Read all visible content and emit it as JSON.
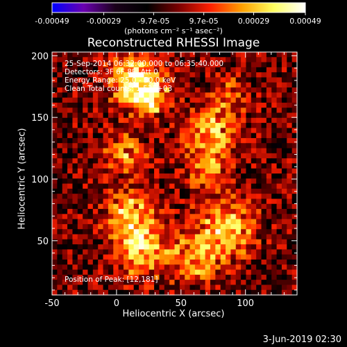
{
  "chart_data": {
    "type": "heatmap",
    "title": "Reconstructed RHESSI Image",
    "xlabel": "Heliocentric X (arcsec)",
    "ylabel": "Heliocentric Y (arcsec)",
    "xlim": [
      -50,
      140
    ],
    "ylim": [
      6,
      203
    ],
    "xticks": [
      -50,
      0,
      50,
      100
    ],
    "yticks": [
      50,
      100,
      150,
      200
    ],
    "colorbar": {
      "range": [
        -0.00049,
        0.00049
      ],
      "ticks": [
        -0.00049,
        -0.00029,
        -9.7e-05,
        9.7e-05,
        0.00029,
        0.00049
      ],
      "tick_labels": [
        "-0.00049",
        "-0.00029",
        "-9.7e-05",
        "9.7e-05",
        "0.00029",
        "0.00049"
      ],
      "colormap": [
        "#0000ff",
        "#6a00b0",
        "#1a001a",
        "#000000",
        "#7a0000",
        "#ff2000",
        "#ffa000",
        "#ffff60",
        "#ffffff"
      ]
    },
    "annotations": [
      "25-Sep-2014 06:32:00.000 to 06:35:40.000",
      "Detectors: 3F 6F 8F, Att 0",
      "Energy Range: 25.0 - 50.0 keV",
      "Clean    Total counts: 1.53E+03"
    ],
    "peak_label": "Position of Peak:",
    "peak_value": "[12,181]",
    "hotspots": [
      {
        "x": 15,
        "y": 180,
        "intensity": 1.0,
        "sigma": 14
      },
      {
        "x": 25,
        "y": 165,
        "intensity": 0.7,
        "sigma": 10
      },
      {
        "x": 5,
        "y": 120,
        "intensity": 0.55,
        "sigma": 12
      },
      {
        "x": 10,
        "y": 70,
        "intensity": 0.75,
        "sigma": 14
      },
      {
        "x": 20,
        "y": 40,
        "intensity": 0.7,
        "sigma": 14
      },
      {
        "x": 75,
        "y": 140,
        "intensity": 0.65,
        "sigma": 14
      },
      {
        "x": 70,
        "y": 110,
        "intensity": 0.55,
        "sigma": 12
      },
      {
        "x": 85,
        "y": 60,
        "intensity": 0.8,
        "sigma": 16
      },
      {
        "x": 60,
        "y": 35,
        "intensity": 0.6,
        "sigma": 14
      },
      {
        "x": 90,
        "y": 170,
        "intensity": 0.45,
        "sigma": 10
      }
    ]
  },
  "colorbar_unit": "(photons cm⁻² s⁻¹ asec⁻²)",
  "footer_date": "3-Jun-2019 02:30"
}
